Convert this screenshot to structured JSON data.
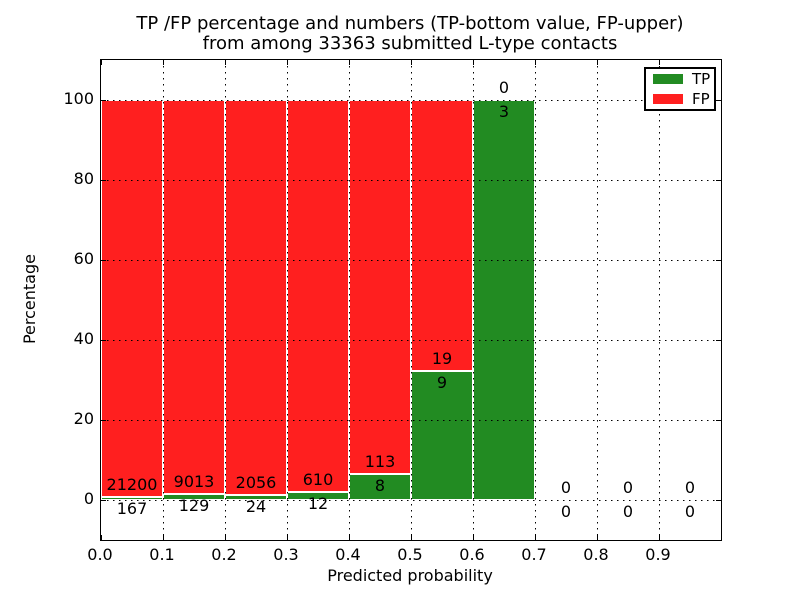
{
  "chart_data": {
    "type": "bar",
    "stacked": true,
    "title_lines": [
      "TP /FP percentage and numbers (TP-bottom value, FP-upper)",
      "from among 33363 submitted L-type contacts"
    ],
    "total_contacts": 33363,
    "xlabel": "Predicted probability",
    "ylabel": "Percentage",
    "xlim": [
      0.0,
      1.0
    ],
    "ylim": [
      -10,
      110
    ],
    "x_tick_labels": [
      "0.0",
      "0.1",
      "0.2",
      "0.3",
      "0.4",
      "0.5",
      "0.6",
      "0.7",
      "0.8",
      "0.9"
    ],
    "y_tick_labels": [
      "0",
      "20",
      "40",
      "60",
      "80",
      "100"
    ],
    "y_ticks": [
      0,
      20,
      40,
      60,
      80,
      100
    ],
    "grid": "dotted black, drawn above bars",
    "value_unit": "percent of bin total (TP+FP), each bar stacked to 100%",
    "legend": {
      "position": "upper right",
      "entries": [
        {
          "label": "TP",
          "color": "#228b22"
        },
        {
          "label": "FP",
          "color": "#ff1f1f"
        }
      ]
    },
    "bins": [
      {
        "range": [
          0.0,
          0.1
        ],
        "tp": 167,
        "fp": 21200
      },
      {
        "range": [
          0.1,
          0.2
        ],
        "tp": 129,
        "fp": 9013
      },
      {
        "range": [
          0.2,
          0.3
        ],
        "tp": 24,
        "fp": 2056
      },
      {
        "range": [
          0.3,
          0.4
        ],
        "tp": 12,
        "fp": 610
      },
      {
        "range": [
          0.4,
          0.5
        ],
        "tp": 8,
        "fp": 113
      },
      {
        "range": [
          0.5,
          0.6
        ],
        "tp": 9,
        "fp": 19
      },
      {
        "range": [
          0.6,
          0.7
        ],
        "tp": 3,
        "fp": 0
      },
      {
        "range": [
          0.7,
          0.8
        ],
        "tp": 0,
        "fp": 0
      },
      {
        "range": [
          0.8,
          0.9
        ],
        "tp": 0,
        "fp": 0
      },
      {
        "range": [
          0.9,
          1.0
        ],
        "tp": 0,
        "fp": 0
      }
    ]
  }
}
